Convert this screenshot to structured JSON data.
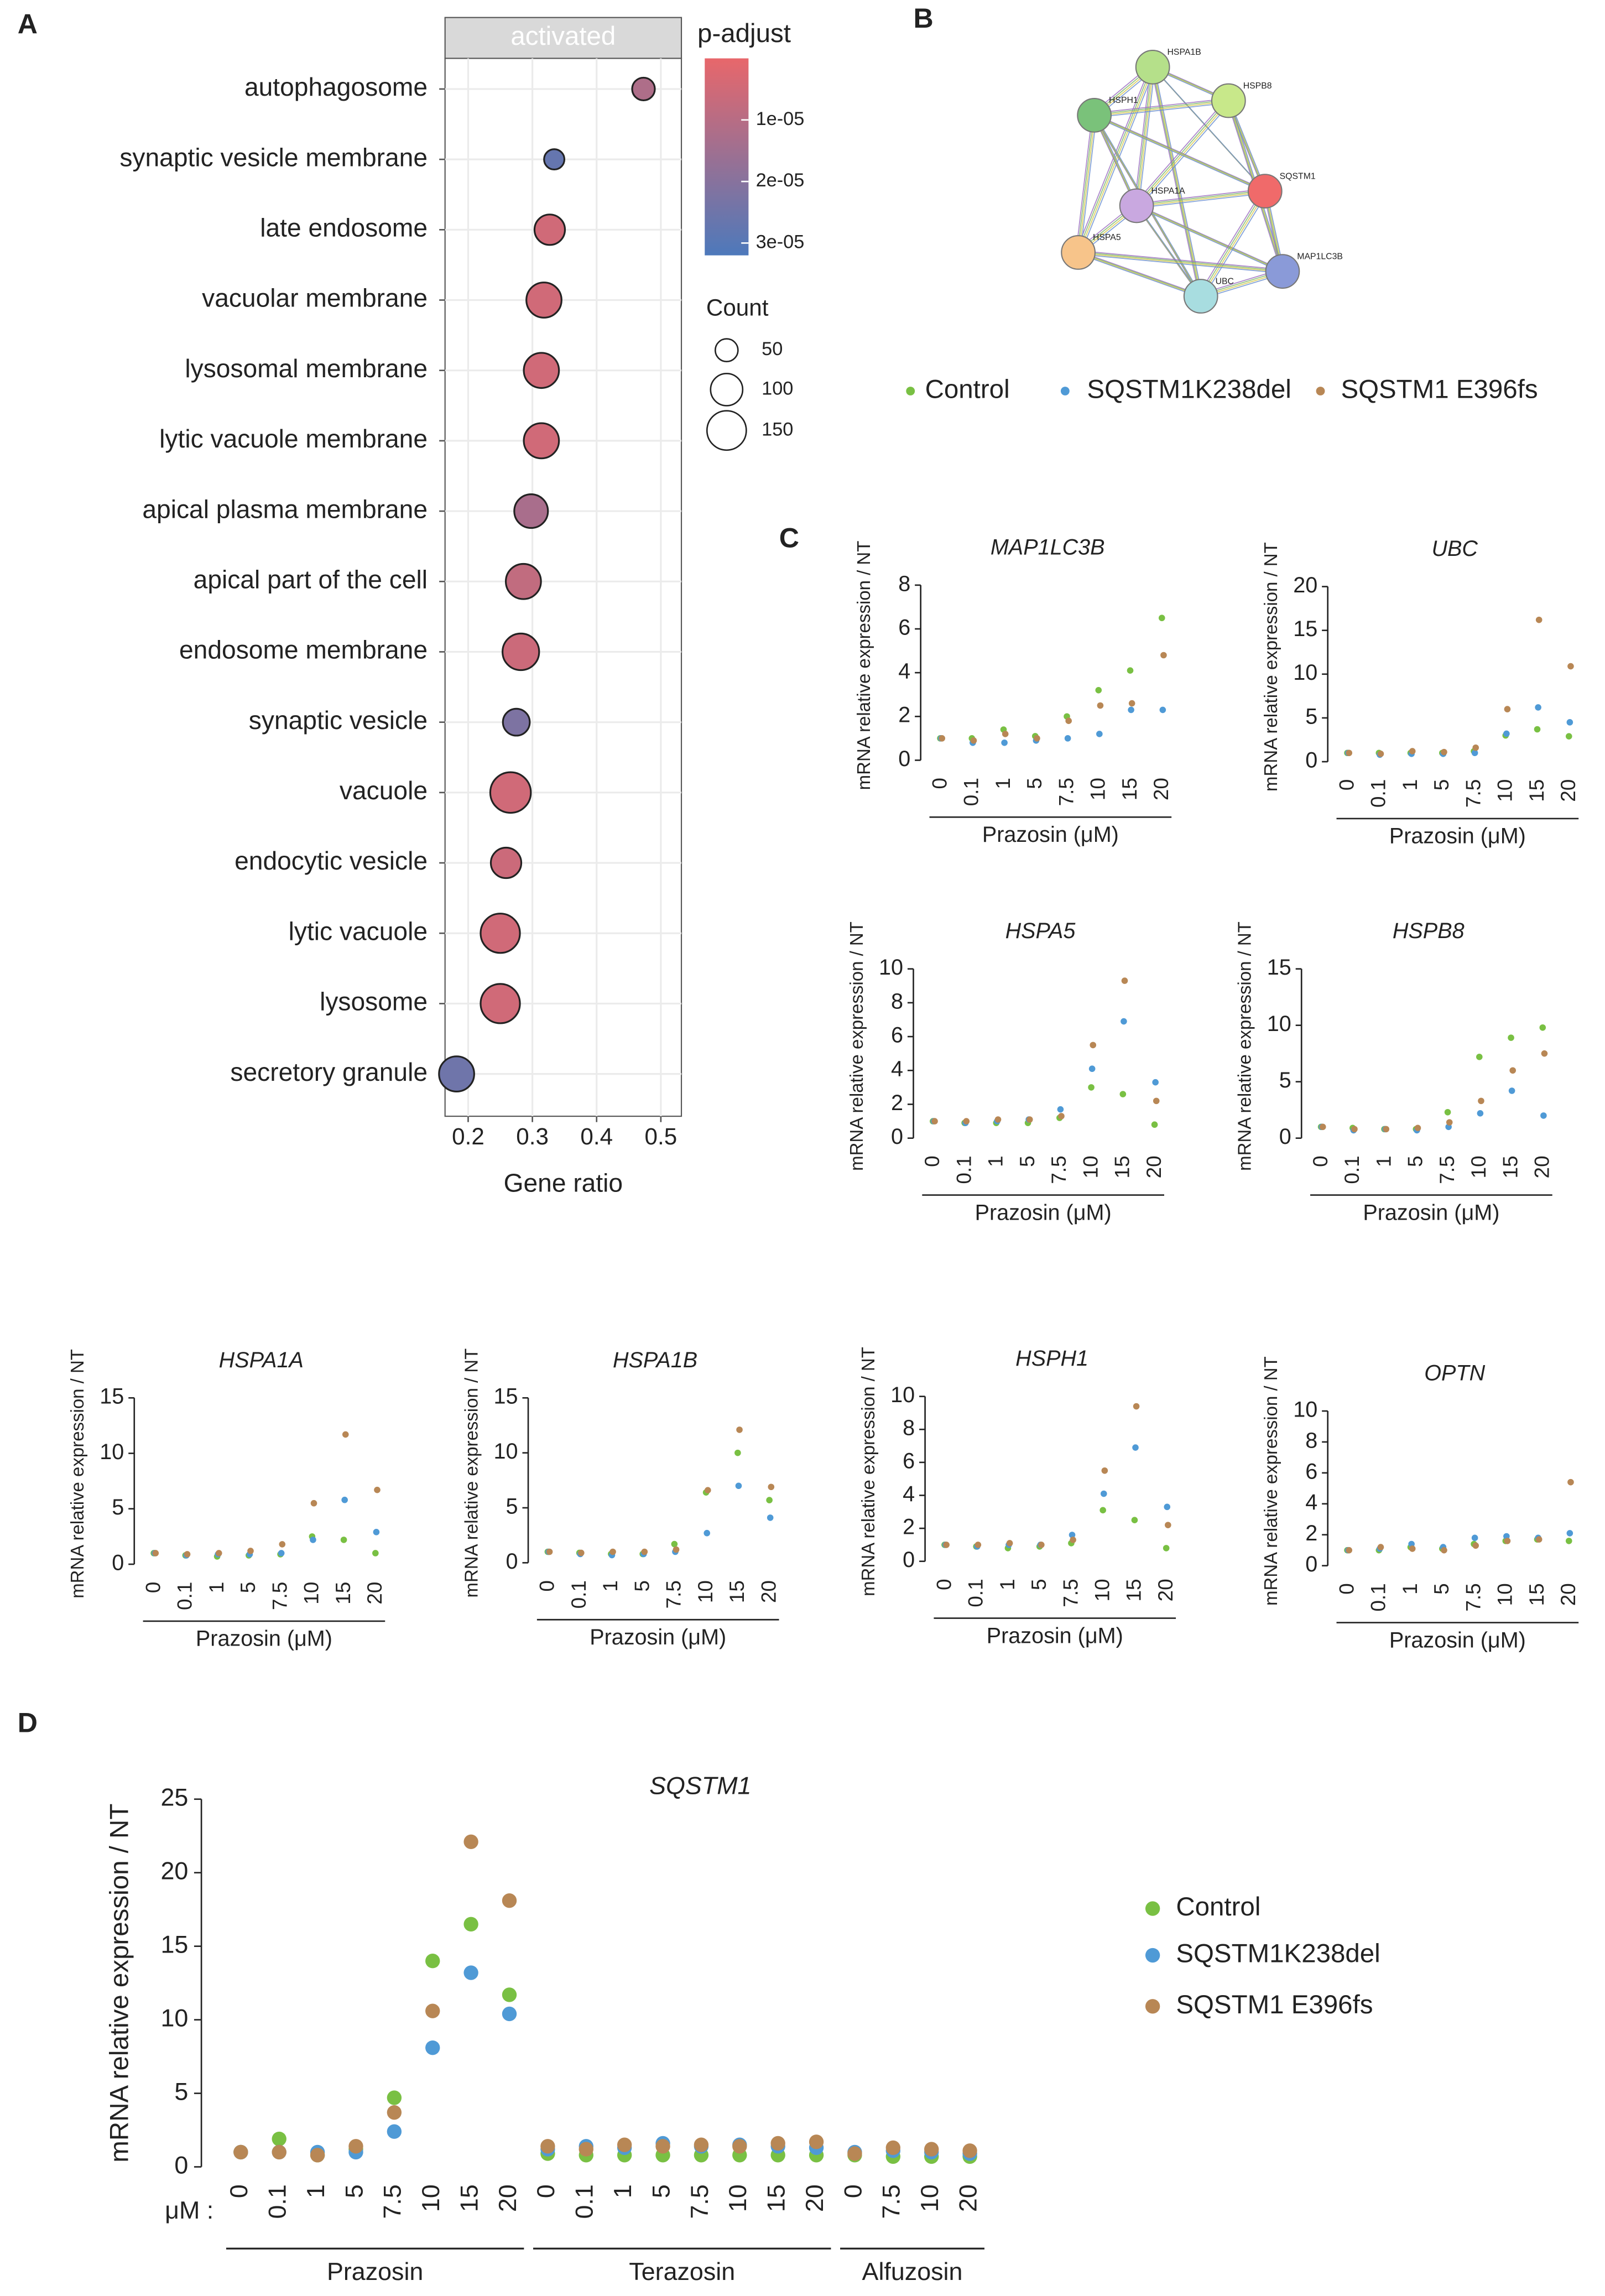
{
  "panel_labels": [
    "A",
    "B",
    "C",
    "D"
  ],
  "network": {
    "nodes": [
      {
        "label": "HSPA1B"
      },
      {
        "label": "HSPB8"
      },
      {
        "label": "HSPH1"
      },
      {
        "label": "HSPA1A"
      },
      {
        "label": "SQSTM1"
      },
      {
        "label": "HSPA5"
      },
      {
        "label": "MAP1LC3B"
      },
      {
        "label": "UBC"
      }
    ]
  },
  "chart_data": [
    {
      "type": "dot",
      "strip": "activated",
      "xlabel": "Gene ratio",
      "categories": [
        "autophagosome",
        "synaptic vesicle membrane",
        "late endosome",
        "vacuolar membrane",
        "lysosomal membrane",
        "lytic vacuole membrane",
        "apical plasma membrane",
        "apical part of the cell",
        "endosome membrane",
        "synaptic vesicle",
        "vacuole",
        "endocytic vesicle",
        "lytic vacuole",
        "lysosome",
        "secretory granule"
      ],
      "values": [
        0.473,
        0.334,
        0.327,
        0.318,
        0.314,
        0.314,
        0.298,
        0.286,
        0.282,
        0.275,
        0.266,
        0.259,
        0.25,
        0.25,
        0.182
      ],
      "counts": [
        50,
        40,
        90,
        120,
        120,
        120,
        110,
        120,
        130,
        70,
        160,
        90,
        150,
        150,
        120
      ],
      "p_adjust": [
        1.2e-05,
        2.7e-05,
        5e-06,
        5e-06,
        5e-06,
        5e-06,
        1.3e-05,
        8e-06,
        6e-06,
        2.2e-05,
        5e-06,
        6e-06,
        5e-06,
        5e-06,
        2.5e-05
      ],
      "xlim": [
        0.164,
        0.532
      ],
      "xticks": [
        0.2,
        0.3,
        0.4,
        0.5
      ],
      "grid": true,
      "color_title": "p-adjust",
      "color_lim": [
        0,
        3.2e-05
      ],
      "color_range": [
        "#e8676b",
        "#4d79bb"
      ],
      "color_ticks": [
        {
          "value": 1e-05,
          "label": "1e-05"
        },
        {
          "value": 2e-05,
          "label": "2e-05"
        },
        {
          "value": 3e-05,
          "label": "3e-05"
        }
      ],
      "size_title": "Count",
      "size_ticks": [
        50,
        100,
        150
      ]
    },
    {
      "type": "scatter",
      "title": "MAP1LC3B",
      "ylabel": "mRNA relative expression / NT",
      "xlabel": "Prazosin (μM)",
      "categories": [
        "0",
        "0.1",
        "1",
        "5",
        "7.5",
        "10",
        "15",
        "20"
      ],
      "ylim": [
        0,
        8
      ],
      "yticks": [
        0,
        2,
        4,
        6,
        8
      ],
      "series": [
        {
          "name": "Control",
          "color": "#79c043",
          "values": [
            1.0,
            1.0,
            1.4,
            1.1,
            2.0,
            3.2,
            4.1,
            6.5
          ]
        },
        {
          "name": "SQSTM1K238del",
          "color": "#4f9ad6",
          "values": [
            1.0,
            0.8,
            0.8,
            0.9,
            1.0,
            1.2,
            2.3,
            2.3
          ]
        },
        {
          "name": "SQSTM1 E396fs",
          "color": "#b88755",
          "values": [
            1.0,
            0.9,
            1.2,
            1.0,
            1.8,
            2.5,
            2.6,
            4.8
          ]
        }
      ]
    },
    {
      "type": "scatter",
      "title": "UBC",
      "ylabel": "mRNA relative expression / NT",
      "xlabel": "Prazosin (μM)",
      "categories": [
        "0",
        "0.1",
        "1",
        "5",
        "7.5",
        "10",
        "15",
        "20"
      ],
      "ylim": [
        0,
        20
      ],
      "yticks": [
        0,
        5,
        10,
        15,
        20
      ],
      "series": [
        {
          "name": "Control",
          "color": "#79c043",
          "values": [
            1.0,
            1.0,
            1.0,
            1.0,
            1.2,
            3.0,
            3.7,
            2.9
          ]
        },
        {
          "name": "SQSTM1K238del",
          "color": "#4f9ad6",
          "values": [
            1.0,
            0.8,
            0.9,
            0.9,
            1.0,
            3.2,
            6.2,
            4.5
          ]
        },
        {
          "name": "SQSTM1 E396fs",
          "color": "#b88755",
          "values": [
            1.0,
            0.9,
            1.2,
            1.1,
            1.6,
            6.0,
            16.2,
            10.9
          ]
        }
      ]
    },
    {
      "type": "scatter",
      "title": "HSPA5",
      "ylabel": "mRNA relative expression / NT",
      "xlabel": "Prazosin (μM)",
      "categories": [
        "0",
        "0.1",
        "1",
        "5",
        "7.5",
        "10",
        "15",
        "20"
      ],
      "ylim": [
        0,
        10
      ],
      "yticks": [
        0,
        2,
        4,
        6,
        8,
        10
      ],
      "series": [
        {
          "name": "Control",
          "color": "#79c043",
          "values": [
            1.0,
            0.9,
            0.9,
            0.9,
            1.2,
            3.0,
            2.6,
            0.8
          ]
        },
        {
          "name": "SQSTM1K238del",
          "color": "#4f9ad6",
          "values": [
            1.0,
            0.9,
            1.0,
            1.1,
            1.7,
            4.1,
            6.9,
            3.3
          ]
        },
        {
          "name": "SQSTM1 E396fs",
          "color": "#b88755",
          "values": [
            1.0,
            1.0,
            1.1,
            1.1,
            1.3,
            5.5,
            9.3,
            2.2
          ]
        }
      ]
    },
    {
      "type": "scatter",
      "title": "HSPB8",
      "ylabel": "mRNA relative expression / NT",
      "xlabel": "Prazosin (μM)",
      "categories": [
        "0",
        "0.1",
        "1",
        "5",
        "7.5",
        "10",
        "15",
        "20"
      ],
      "ylim": [
        0,
        15
      ],
      "yticks": [
        0,
        5,
        10,
        15
      ],
      "series": [
        {
          "name": "Control",
          "color": "#79c043",
          "values": [
            1.0,
            0.9,
            0.8,
            0.8,
            2.3,
            7.2,
            8.9,
            9.8
          ]
        },
        {
          "name": "SQSTM1K238del",
          "color": "#4f9ad6",
          "values": [
            1.0,
            0.7,
            0.8,
            0.7,
            1.0,
            2.2,
            4.2,
            2.0
          ]
        },
        {
          "name": "SQSTM1 E396fs",
          "color": "#b88755",
          "values": [
            1.0,
            0.8,
            0.8,
            0.9,
            1.4,
            3.3,
            6.0,
            7.5
          ]
        }
      ]
    },
    {
      "type": "scatter",
      "title": "HSPA1A",
      "ylabel": "mRNA relative expression / NT",
      "xlabel": "Prazosin (μM)",
      "categories": [
        "0",
        "0.1",
        "1",
        "5",
        "7.5",
        "10",
        "15",
        "20"
      ],
      "ylim": [
        0,
        15
      ],
      "yticks": [
        0,
        5,
        10,
        15
      ],
      "series": [
        {
          "name": "Control",
          "color": "#79c043",
          "values": [
            1.0,
            0.8,
            0.7,
            0.8,
            0.9,
            2.5,
            2.2,
            1.0
          ]
        },
        {
          "name": "SQSTM1K238del",
          "color": "#4f9ad6",
          "values": [
            1.0,
            0.8,
            0.9,
            0.9,
            1.0,
            2.2,
            5.8,
            2.9
          ]
        },
        {
          "name": "SQSTM1 E396fs",
          "color": "#b88755",
          "values": [
            1.0,
            0.9,
            1.0,
            1.2,
            1.8,
            5.5,
            11.7,
            6.7
          ]
        }
      ]
    },
    {
      "type": "scatter",
      "title": "HSPA1B",
      "ylabel": "mRNA relative expression / NT",
      "xlabel": "Prazosin (μM)",
      "categories": [
        "0",
        "0.1",
        "1",
        "5",
        "7.5",
        "10",
        "15",
        "20"
      ],
      "ylim": [
        0,
        15
      ],
      "yticks": [
        0,
        5,
        10,
        15
      ],
      "series": [
        {
          "name": "Control",
          "color": "#79c043",
          "values": [
            1.0,
            0.9,
            0.8,
            0.8,
            1.7,
            6.4,
            10.0,
            5.7
          ]
        },
        {
          "name": "SQSTM1K238del",
          "color": "#4f9ad6",
          "values": [
            1.0,
            0.8,
            0.7,
            0.8,
            1.0,
            2.7,
            7.0,
            4.1
          ]
        },
        {
          "name": "SQSTM1 E396fs",
          "color": "#b88755",
          "values": [
            1.0,
            0.9,
            1.0,
            1.0,
            1.2,
            6.6,
            12.1,
            6.9
          ]
        }
      ]
    },
    {
      "type": "scatter",
      "title": "HSPH1",
      "ylabel": "mRNA relative expression / NT",
      "xlabel": "Prazosin (μM)",
      "categories": [
        "0",
        "0.1",
        "1",
        "5",
        "7.5",
        "10",
        "15",
        "20"
      ],
      "ylim": [
        0,
        10
      ],
      "yticks": [
        0,
        2,
        4,
        6,
        8,
        10
      ],
      "series": [
        {
          "name": "Control",
          "color": "#79c043",
          "values": [
            1.0,
            0.9,
            0.8,
            0.9,
            1.1,
            3.1,
            2.5,
            0.8
          ]
        },
        {
          "name": "SQSTM1K238del",
          "color": "#4f9ad6",
          "values": [
            1.0,
            0.9,
            1.0,
            1.0,
            1.6,
            4.1,
            6.9,
            3.3
          ]
        },
        {
          "name": "SQSTM1 E396fs",
          "color": "#b88755",
          "values": [
            1.0,
            1.0,
            1.1,
            1.0,
            1.3,
            5.5,
            9.4,
            2.2
          ]
        }
      ]
    },
    {
      "type": "scatter",
      "title": "OPTN",
      "ylabel": "mRNA relative expression / NT",
      "xlabel": "Prazosin (μM)",
      "categories": [
        "0",
        "0.1",
        "1",
        "5",
        "7.5",
        "10",
        "15",
        "20"
      ],
      "ylim": [
        0,
        10
      ],
      "yticks": [
        0,
        2,
        4,
        6,
        8,
        10
      ],
      "series": [
        {
          "name": "Control",
          "color": "#79c043",
          "values": [
            1.0,
            1.0,
            1.2,
            1.1,
            1.4,
            1.6,
            1.7,
            1.6
          ]
        },
        {
          "name": "SQSTM1K238del",
          "color": "#4f9ad6",
          "values": [
            1.0,
            1.1,
            1.4,
            1.2,
            1.8,
            1.9,
            1.8,
            2.1
          ]
        },
        {
          "name": "SQSTM1 E396fs",
          "color": "#b88755",
          "values": [
            1.0,
            1.2,
            1.1,
            1.0,
            1.3,
            1.6,
            1.7,
            5.4
          ]
        }
      ]
    },
    {
      "type": "grouped_scatter",
      "title": "SQSTM1",
      "ylabel": "mRNA relative expression / NT",
      "x_prefix": "μM :",
      "groups": [
        {
          "name": "Prazosin",
          "categories": [
            "0",
            "0.1",
            "1",
            "5",
            "7.5",
            "10",
            "15",
            "20"
          ]
        },
        {
          "name": "Terazosin",
          "categories": [
            "0",
            "0.1",
            "1",
            "5",
            "7.5",
            "10",
            "15",
            "20"
          ]
        },
        {
          "name": "Alfuzosin",
          "categories": [
            "0",
            "7.5",
            "10",
            "20"
          ]
        }
      ],
      "ylim": [
        0,
        25
      ],
      "yticks": [
        0,
        5,
        10,
        15,
        20,
        25
      ],
      "series": [
        {
          "name": "Control",
          "color": "#79c043",
          "values": [
            1.0,
            1.9,
            0.8,
            1.2,
            4.7,
            14.0,
            16.5,
            11.7,
            0.9,
            0.8,
            0.8,
            0.8,
            0.8,
            0.8,
            0.8,
            0.8,
            0.8,
            0.7,
            0.7,
            0.7
          ]
        },
        {
          "name": "SQSTM1K238del",
          "color": "#4f9ad6",
          "values": [
            1.0,
            1.0,
            1.0,
            1.0,
            2.4,
            8.1,
            13.2,
            10.4,
            1.2,
            1.4,
            1.3,
            1.6,
            1.4,
            1.5,
            1.4,
            1.3,
            1.0,
            1.1,
            1.0,
            0.9
          ]
        },
        {
          "name": "SQSTM1 E396fs",
          "color": "#b88755",
          "values": [
            1.0,
            1.0,
            0.8,
            1.4,
            3.7,
            10.6,
            22.1,
            18.1,
            1.4,
            1.2,
            1.5,
            1.4,
            1.5,
            1.4,
            1.6,
            1.7,
            0.9,
            1.3,
            1.2,
            1.1
          ]
        }
      ]
    }
  ]
}
